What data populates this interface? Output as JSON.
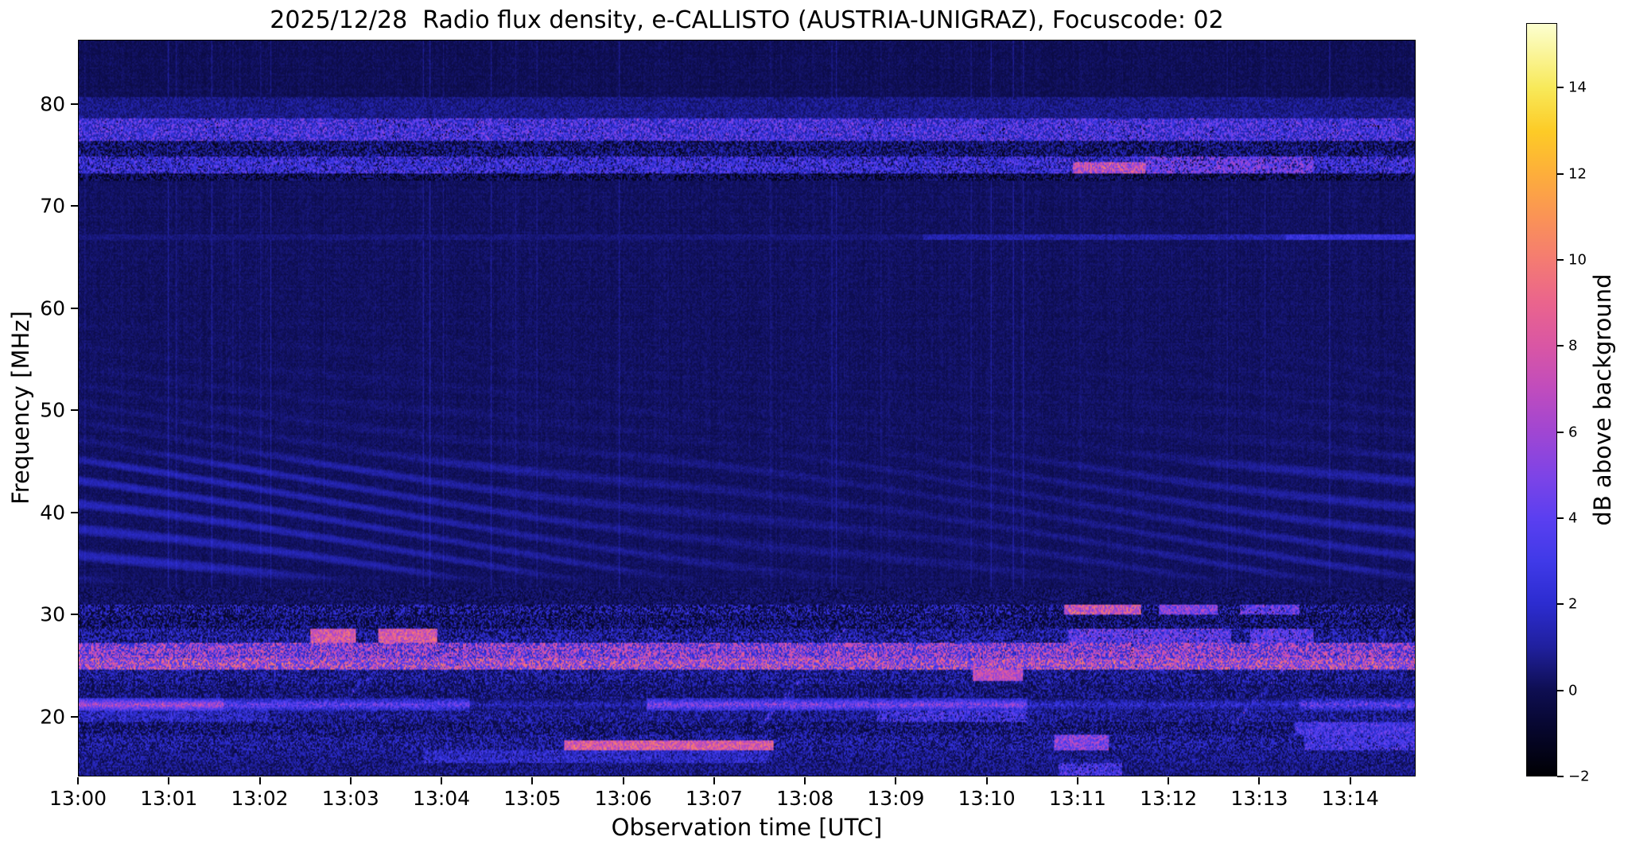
{
  "chart_data": {
    "type": "heatmap",
    "title": "2025/12/28  Radio flux density, e-CALLISTO (AUSTRIA-UNIGRAZ), Focuscode: 02",
    "xlabel": "Observation time [UTC]",
    "ylabel": "Frequency [MHz]",
    "x_ticks": [
      "13:00",
      "13:01",
      "13:02",
      "13:03",
      "13:04",
      "13:05",
      "13:06",
      "13:07",
      "13:08",
      "13:09",
      "13:10",
      "13:11",
      "13:12",
      "13:13",
      "13:14"
    ],
    "x_tick_minutes": [
      0,
      1,
      2,
      3,
      4,
      5,
      6,
      7,
      8,
      9,
      10,
      11,
      12,
      13,
      14
    ],
    "x_range_minutes": [
      0,
      14.72
    ],
    "y_ticks": [
      80,
      70,
      60,
      50,
      40,
      30,
      20
    ],
    "y_range_mhz": [
      14.15,
      86.3
    ],
    "colorbar": {
      "label": "dB above background",
      "ticks": [
        14,
        12,
        10,
        8,
        6,
        4,
        2,
        0,
        -2
      ],
      "range": [
        -2,
        15.5
      ]
    },
    "colormap_stops": [
      [
        -2,
        "#000004"
      ],
      [
        -1,
        "#06062a"
      ],
      [
        0,
        "#0e0e52"
      ],
      [
        1,
        "#20209e"
      ],
      [
        2,
        "#2c2cd0"
      ],
      [
        3,
        "#403ae8"
      ],
      [
        4,
        "#5b3ff0"
      ],
      [
        5,
        "#7e44e6"
      ],
      [
        6,
        "#a046d2"
      ],
      [
        7,
        "#c04cbd"
      ],
      [
        8,
        "#d956a4"
      ],
      [
        9,
        "#ea648d"
      ],
      [
        10,
        "#f47b72"
      ],
      [
        11,
        "#fa9356"
      ],
      [
        12,
        "#fdae3b"
      ],
      [
        13,
        "#fdcb26"
      ],
      [
        14,
        "#f8e959"
      ],
      [
        15.5,
        "#fcffd0"
      ]
    ],
    "features": {
      "seed": 20251228,
      "background": {
        "base": 0.55,
        "noise": 0.7,
        "col_noise": 0.13,
        "row_noise": 0.09,
        "faint_col_line_p": 0.02,
        "top_dim_above_mhz": 80.8,
        "top_dim": 0.15
      },
      "ripple": {
        "f0": 32.9,
        "f1": 46,
        "f_ext": 60,
        "amp": 1.05,
        "amp_ext": 0.32,
        "kf": 3.0,
        "kt": 3.8,
        "mod_amp": 2.2,
        "mod_t": 0.8,
        "mod_f": 0.25
      },
      "bands": [
        {
          "f0": 78.6,
          "f1": 80.8,
          "base": 0.45,
          "amp": 0.9,
          "sp": 0.3,
          "sLo": 0.8,
          "sHi": 2.2
        },
        {
          "f0": 76.4,
          "f1": 78.6,
          "base": -1.2,
          "amp": 1.6,
          "sp": 0.5,
          "sLo": 0.5,
          "sHi": 3.6,
          "bp": 0.07,
          "bLo": 4,
          "bHi": 7.5
        },
        {
          "f0": 74.9,
          "f1": 76.4,
          "base": -1.1,
          "amp": 1.3,
          "sp": 0.22,
          "sLo": 0.8,
          "sHi": 3.2
        },
        {
          "f0": 73.3,
          "f1": 74.9,
          "base": 0.5,
          "amp": 2.4,
          "sp": 0.2,
          "sLo": 3,
          "sHi": 6.5,
          "windows": [
            {
              "t0": 10.95,
              "t1": 11.75,
              "p": 0.85,
              "lo": 7,
              "hi": 13,
              "fmax": 74.35
            },
            {
              "t0": 11.75,
              "t1": 13.6,
              "p": 0.3,
              "lo": 4.5,
              "hi": 8.5
            }
          ]
        },
        {
          "f0": 72.5,
          "f1": 73.3,
          "base": -1.3,
          "amp": 1.0,
          "sp": 0.04,
          "sLo": 0.5,
          "sHi": 1.5
        },
        {
          "f0": 66.75,
          "f1": 67.3,
          "base": 0.55,
          "amp": 0.7,
          "windows": [
            {
              "t0": 9.3,
              "t1": 14.8,
              "p": 1,
              "lo": 1.3,
              "hi": 2.6
            },
            {
              "t0": 13.3,
              "t1": 14.8,
              "p": 1,
              "lo": 2.5,
              "hi": 4.2
            }
          ]
        },
        {
          "f0": 31.0,
          "f1": 32.6,
          "base": -0.25,
          "amp": 0.95,
          "sp": 0.05,
          "sLo": 0.5,
          "sHi": 1.2
        },
        {
          "f0": 29.9,
          "f1": 31.0,
          "base": -0.7,
          "amp": 0.85,
          "sp": 0.2,
          "sLo": 1.2,
          "sHi": 5,
          "windows": [
            {
              "t0": 10.85,
              "t1": 11.7,
              "p": 0.8,
              "lo": 7.5,
              "hi": 14
            },
            {
              "t0": 11.9,
              "t1": 12.55,
              "p": 0.5,
              "lo": 5,
              "hi": 10
            },
            {
              "t0": 12.8,
              "t1": 13.45,
              "p": 0.45,
              "lo": 4,
              "hi": 9
            }
          ]
        },
        {
          "f0": 28.6,
          "f1": 29.9,
          "base": -0.85,
          "amp": 1.0,
          "sp": 0.12,
          "sLo": 1,
          "sHi": 3.5
        },
        {
          "f0": 27.2,
          "f1": 28.6,
          "base": 0.1,
          "amp": 1.2,
          "sp": 0.5,
          "sLo": 1,
          "sHi": 5,
          "windows": [
            {
              "t0": 2.55,
              "t1": 3.05,
              "p": 0.7,
              "lo": 8,
              "hi": 13
            },
            {
              "t0": 3.3,
              "t1": 3.95,
              "p": 0.7,
              "lo": 8,
              "hi": 13
            },
            {
              "t0": 10.9,
              "t1": 12.7,
              "p": 0.4,
              "lo": 4,
              "hi": 9
            },
            {
              "t0": 12.9,
              "t1": 13.6,
              "p": 0.35,
              "lo": 4,
              "hi": 8
            }
          ]
        },
        {
          "f0": 25.7,
          "f1": 27.2,
          "base": 0.3,
          "amp": 1.6,
          "sp": 0.55,
          "sLo": 1.2,
          "sHi": 5.5,
          "bp": 0.05,
          "bLo": 7,
          "bHi": 11
        },
        {
          "f0": 24.5,
          "f1": 25.7,
          "base": 0.9,
          "amp": 2.0,
          "sp": 0.6,
          "sLo": 2,
          "sHi": 7,
          "bp": 0.08,
          "bLo": 8,
          "bHi": 13
        },
        {
          "f0": 23.1,
          "f1": 24.5,
          "base": 0.1,
          "amp": 1.0,
          "sp": 0.35,
          "sLo": 1,
          "sHi": 4.5,
          "windows": [
            {
              "t0": 9.85,
              "t1": 10.4,
              "p": 0.8,
              "lo": 7,
              "hi": 11,
              "fmin": 23.5
            }
          ]
        },
        {
          "f0": 21.75,
          "f1": 23.1,
          "base": -0.2,
          "amp": 0.9,
          "sp": 0.22,
          "sLo": 0.8,
          "sHi": 3.3
        },
        {
          "f0": 20.5,
          "f1": 21.75,
          "type": "line",
          "fc": 21.1,
          "hw": 0.62,
          "profile": [
            [
              0,
              1.6,
              7,
              12
            ],
            [
              1.6,
              4.3,
              4.5,
              9
            ],
            [
              4.3,
              6.25,
              2,
              4.5
            ],
            [
              6.25,
              10.45,
              5.5,
              10.5
            ],
            [
              10.45,
              13.45,
              2.5,
              5.5
            ],
            [
              13.45,
              14.8,
              4.5,
              9.5
            ]
          ]
        },
        {
          "f0": 19.4,
          "f1": 20.5,
          "base": 0.1,
          "amp": 1.1,
          "sp": 0.4,
          "sLo": 1,
          "sHi": 4,
          "windows": [
            {
              "t0": 0,
              "t1": 2.1,
              "p": 0.35,
              "lo": 2,
              "hi": 5
            },
            {
              "t0": 8.8,
              "t1": 10.45,
              "p": 0.3,
              "lo": 3,
              "hi": 6.5
            }
          ]
        },
        {
          "f0": 18.2,
          "f1": 19.4,
          "base": -0.55,
          "amp": 0.95,
          "sp": 0.16,
          "sLo": 1,
          "sHi": 3.5,
          "windows": [
            {
              "t0": 13.4,
              "t1": 14.8,
              "p": 0.5,
              "lo": 3,
              "hi": 7
            }
          ]
        },
        {
          "f0": 16.7,
          "f1": 18.2,
          "base": 0.2,
          "amp": 1.3,
          "sp": 0.45,
          "sLo": 1,
          "sHi": 4.5,
          "windows": [
            {
              "t0": 5.35,
              "t1": 7.65,
              "p": 0.8,
              "lo": 8,
              "hi": 13,
              "fmax": 17.6
            },
            {
              "t0": 10.75,
              "t1": 11.35,
              "p": 0.55,
              "lo": 5,
              "hi": 10
            },
            {
              "t0": 13.5,
              "t1": 14.8,
              "p": 0.4,
              "lo": 3,
              "hi": 6.5
            }
          ]
        },
        {
          "f0": 15.4,
          "f1": 16.7,
          "base": 0.1,
          "amp": 1.2,
          "sp": 0.45,
          "sLo": 0.8,
          "sHi": 3.5,
          "windows": [
            {
              "t0": 3.8,
              "t1": 7.6,
              "p": 0.4,
              "lo": 2,
              "hi": 5
            }
          ]
        },
        {
          "f0": 14.0,
          "f1": 15.4,
          "base": -0.1,
          "amp": 1.0,
          "sp": 0.3,
          "sLo": 0.8,
          "sHi": 2.8,
          "windows": [
            {
              "t0": 10.8,
              "t1": 11.5,
              "p": 0.4,
              "lo": 3,
              "hi": 7
            }
          ]
        }
      ],
      "streaks": [
        {
          "t0": 7.5,
          "t1": 8.45,
          "fA": 19.0,
          "fB": 28.6,
          "w": 0.5,
          "lo": 4,
          "hi": 11
        },
        {
          "t0": 12.7,
          "t1": 13.55,
          "fA": 19.0,
          "fB": 27.2,
          "w": 0.5,
          "lo": 4,
          "hi": 10
        },
        {
          "t0": 2.8,
          "t1": 3.75,
          "fA": 20.5,
          "fB": 28.5,
          "w": 0.45,
          "lo": 3,
          "hi": 9
        }
      ]
    }
  }
}
